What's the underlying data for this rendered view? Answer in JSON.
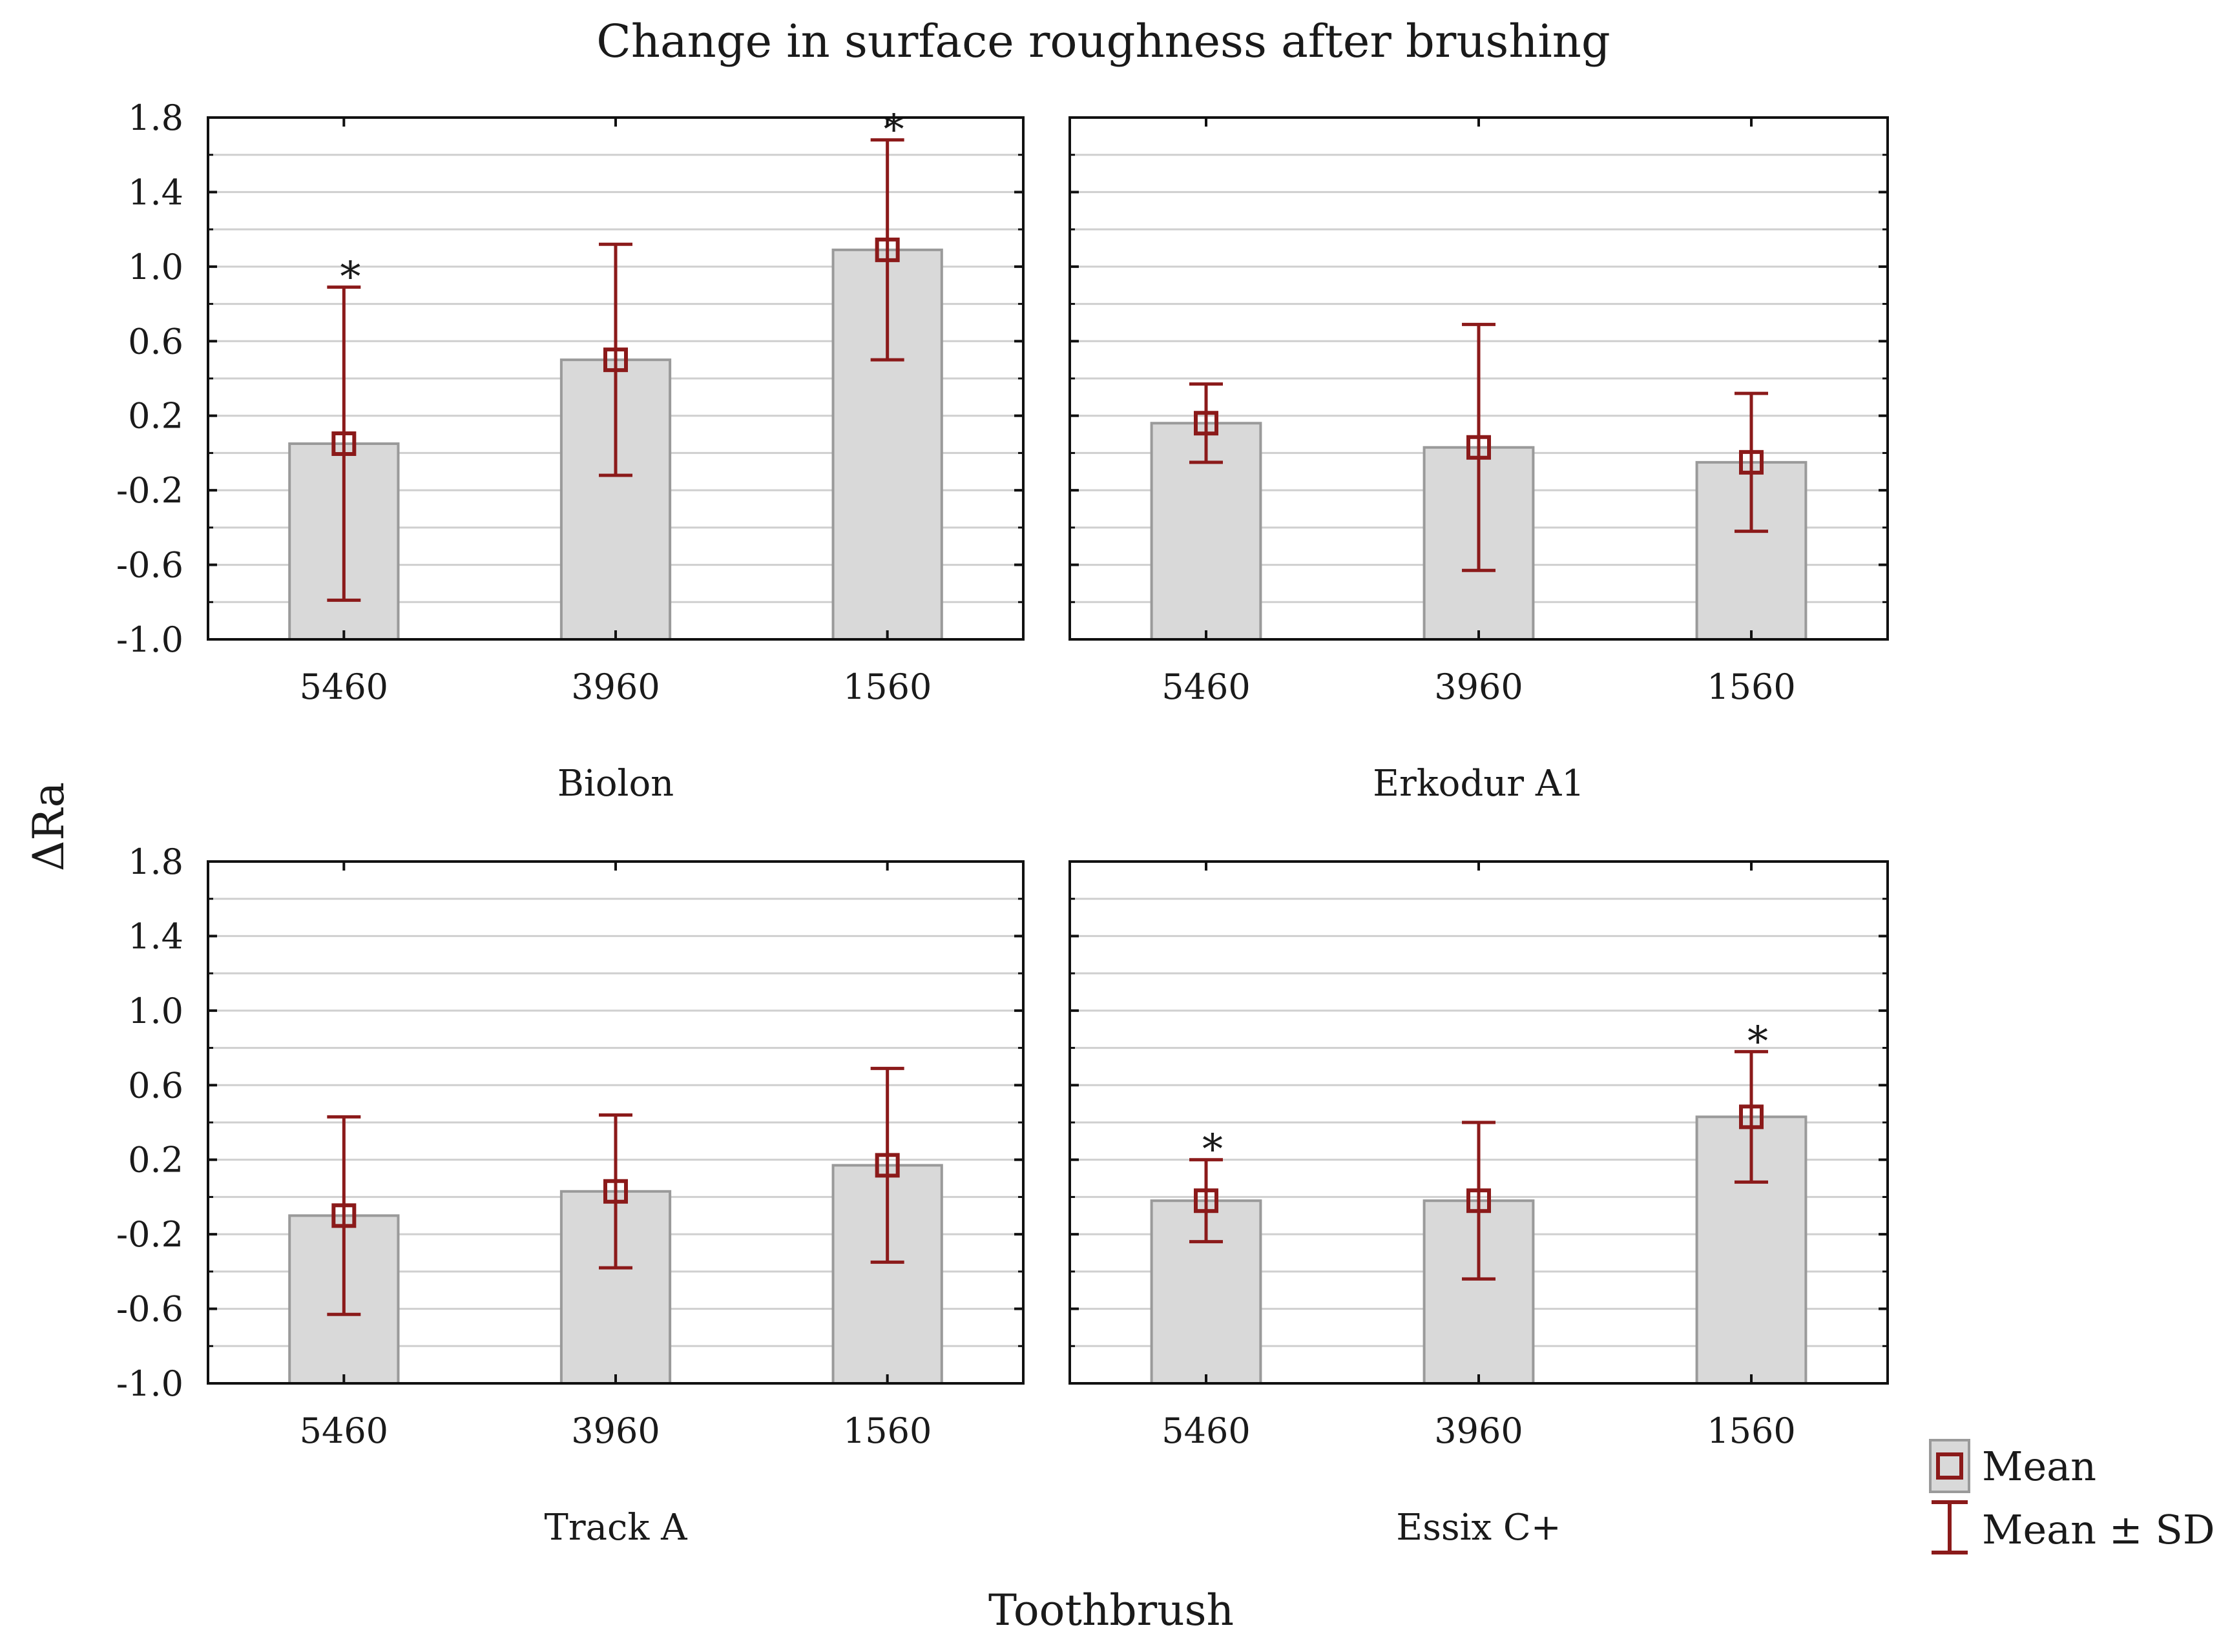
{
  "chart_data": {
    "type": "bar",
    "title": "Change in surface roughness after brushing",
    "ylabel": "ΔRa",
    "xlabel": "Toothbrush",
    "ylim": [
      -1.0,
      1.8
    ],
    "yticks": [
      -1.0,
      -0.6,
      -0.2,
      0.2,
      0.6,
      1.0,
      1.4,
      1.8
    ],
    "ytick_labels": [
      "-1.0",
      "-0.6",
      "-0.2",
      "0.2",
      "0.6",
      "1.0",
      "1.4",
      "1.8"
    ],
    "grid": true,
    "categories": [
      "5460",
      "3960",
      "1560"
    ],
    "legend": {
      "position": "bottom-right",
      "entries": [
        {
          "label": "Mean",
          "symbol": "square-marker"
        },
        {
          "label": "Mean ± SD",
          "symbol": "whisker"
        }
      ]
    },
    "colors": {
      "bar_fill": "#d9d9d9",
      "bar_stroke": "#9a9a9a",
      "error": "#8b1a1a",
      "grid": "#cfcfcf",
      "frame": "#111111"
    },
    "panels": [
      {
        "name": "Biolon",
        "means": [
          0.05,
          0.5,
          1.09
        ],
        "sd": [
          0.84,
          0.62,
          0.59
        ],
        "significant": [
          true,
          false,
          true
        ]
      },
      {
        "name": "Erkodur A1",
        "means": [
          0.16,
          0.03,
          -0.05
        ],
        "sd": [
          0.21,
          0.66,
          0.37
        ],
        "significant": [
          false,
          false,
          false
        ]
      },
      {
        "name": "Track A",
        "means": [
          -0.1,
          0.03,
          0.17
        ],
        "sd": [
          0.53,
          0.41,
          0.52
        ],
        "significant": [
          false,
          false,
          false
        ]
      },
      {
        "name": "Essix C+",
        "means": [
          -0.02,
          -0.02,
          0.43
        ],
        "sd": [
          0.22,
          0.42,
          0.35
        ],
        "significant": [
          true,
          false,
          true
        ]
      }
    ],
    "significance_marker": "*"
  }
}
